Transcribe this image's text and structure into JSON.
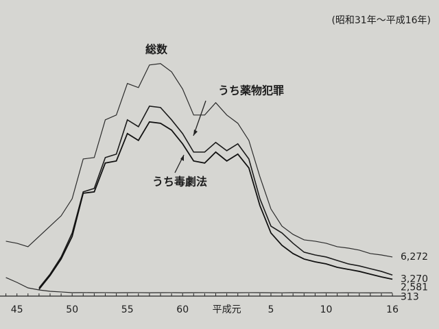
{
  "chart_data": {
    "type": "line",
    "note": "(昭和31年～平成16年)",
    "categories": [
      null,
      "45",
      null,
      null,
      null,
      null,
      "50",
      null,
      null,
      null,
      null,
      "55",
      null,
      null,
      null,
      null,
      "60",
      null,
      null,
      null,
      "平成元",
      null,
      null,
      null,
      "5",
      null,
      null,
      null,
      null,
      "10",
      null,
      null,
      null,
      null,
      null,
      "16"
    ],
    "ylim": [
      0,
      45000
    ],
    "series": [
      {
        "name": "総数",
        "color": "#2a2a2a",
        "values": [
          8890,
          8550,
          7980,
          9690,
          11400,
          13110,
          15960,
          22570,
          22800,
          29070,
          29870,
          35110,
          34430,
          38190,
          38420,
          37050,
          34200,
          29870,
          29870,
          31920,
          29870,
          28500,
          25650,
          19610,
          14250,
          11400,
          10030,
          9120,
          8890,
          8550,
          7980,
          7750,
          7410,
          6840,
          6610,
          6272
        ],
        "value_labels": [
          null,
          null,
          null,
          null,
          null,
          null,
          null,
          null,
          null,
          null,
          null,
          null,
          null,
          null,
          null,
          null,
          null,
          null,
          null,
          null,
          null,
          null,
          null,
          null,
          null,
          null,
          null,
          null,
          null,
          null,
          null,
          null,
          null,
          null,
          null,
          "6,272"
        ]
      },
      {
        "name": "うち薬物犯罪",
        "color": "#1a1a1a",
        "values": [
          null,
          null,
          null,
          1140,
          3420,
          6270,
          10260,
          17100,
          17670,
          22800,
          23370,
          29070,
          27930,
          31350,
          31120,
          29070,
          26790,
          23710,
          23710,
          25310,
          23940,
          25080,
          22570,
          15960,
          11400,
          10260,
          8550,
          7070,
          6610,
          6270,
          5700,
          5130,
          4790,
          4330,
          3880,
          3270
        ],
        "value_labels": [
          null,
          null,
          null,
          null,
          null,
          null,
          null,
          null,
          null,
          null,
          null,
          null,
          null,
          null,
          null,
          null,
          null,
          null,
          null,
          null,
          null,
          null,
          null,
          null,
          null,
          null,
          null,
          null,
          null,
          null,
          null,
          null,
          null,
          null,
          null,
          "3,270"
        ]
      },
      {
        "name": "うち毒劇法",
        "color": "#111111",
        "values": [
          null,
          null,
          null,
          910,
          3190,
          5930,
          9690,
          16870,
          17100,
          21890,
          22230,
          26790,
          25650,
          28730,
          28500,
          27360,
          25080,
          22230,
          21890,
          23710,
          22230,
          23370,
          21090,
          14820,
          10260,
          8210,
          6840,
          5930,
          5470,
          5130,
          4560,
          4220,
          3880,
          3420,
          2960,
          2581
        ],
        "value_labels": [
          null,
          null,
          null,
          null,
          null,
          null,
          null,
          null,
          null,
          null,
          null,
          null,
          null,
          null,
          null,
          null,
          null,
          null,
          null,
          null,
          null,
          null,
          null,
          null,
          null,
          null,
          null,
          null,
          null,
          null,
          null,
          null,
          null,
          null,
          null,
          "2,581"
        ]
      },
      {
        "color": "#2a2a2a",
        "values": [
          2850,
          2050,
          1140,
          800,
          570,
          460,
          340,
          360,
          340,
          350,
          330,
          340,
          350,
          330,
          340,
          350,
          330,
          340,
          350,
          330,
          340,
          330,
          350,
          340,
          330,
          320,
          340,
          330,
          320,
          330,
          320,
          330,
          320,
          310,
          320,
          313
        ],
        "value_labels": [
          null,
          null,
          null,
          null,
          null,
          null,
          null,
          null,
          null,
          null,
          null,
          null,
          null,
          null,
          null,
          null,
          null,
          null,
          null,
          null,
          null,
          null,
          null,
          null,
          null,
          null,
          null,
          null,
          null,
          null,
          null,
          null,
          null,
          null,
          null,
          "313"
        ]
      }
    ]
  }
}
